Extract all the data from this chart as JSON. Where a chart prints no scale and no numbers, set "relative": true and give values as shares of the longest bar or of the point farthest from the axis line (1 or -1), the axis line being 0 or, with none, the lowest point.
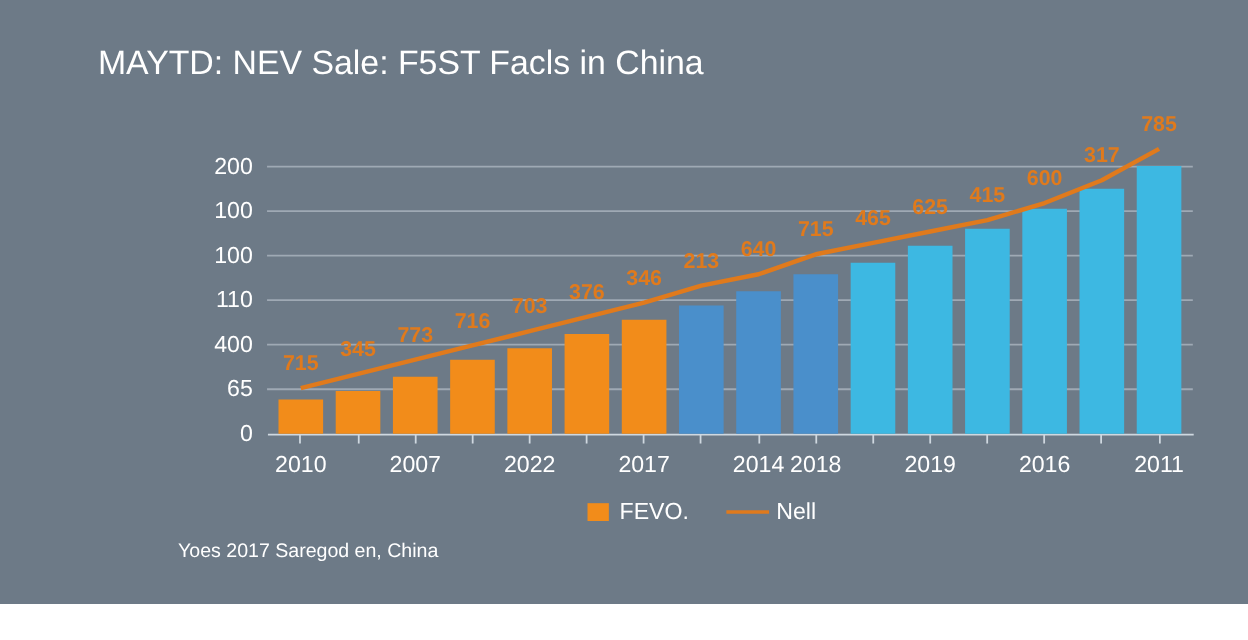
{
  "chart_data": {
    "type": "bar",
    "title": "MAYTD: NEV Sale: F5ST Facls in China",
    "relative": true,
    "categories": [
      "2010",
      null,
      "2007",
      null,
      "2022",
      null,
      "2017",
      null,
      "2014",
      "2018",
      null,
      "2019",
      null,
      "2016",
      null,
      "2011"
    ],
    "series": [
      {
        "name": "FEVO.",
        "color": "#f28c1a",
        "values": [
          0.12,
          0.15,
          0.2,
          0.26,
          0.3,
          0.35,
          0.4,
          null,
          null,
          null,
          null,
          null,
          null,
          null,
          null,
          null
        ]
      },
      {
        "colors": [
          "#3db8e2",
          "#3db8e2",
          "#3db8e2",
          "#3db8e2",
          "#3db8e2",
          "#3db8e2",
          "#3db8e2",
          "#4a8fcb",
          "#4a8fcb",
          "#4a8fcb",
          "#3db8e2",
          "#3db8e2",
          "#3db8e2",
          "#3db8e2",
          "#3db8e2",
          "#3db8e2"
        ],
        "values": [
          null,
          null,
          null,
          null,
          null,
          null,
          null,
          0.45,
          0.5,
          0.56,
          0.6,
          0.66,
          0.72,
          0.79,
          0.86,
          0.94
        ]
      },
      {
        "name": "Nell",
        "type": "line",
        "color": "#e07a1c",
        "values": [
          0.16,
          0.21,
          0.26,
          0.31,
          0.36,
          0.41,
          0.46,
          0.52,
          0.56,
          0.63,
          0.67,
          0.71,
          0.75,
          0.81,
          0.89,
          1
        ]
      }
    ],
    "grid": "y",
    "legend": "bottom",
    "annotations": [
      "0",
      "65",
      "400",
      "110",
      "100",
      "100",
      "200",
      {
        "text": "715",
        "y": 0.16
      },
      {
        "text": "345",
        "y": 0.21
      },
      {
        "text": "773",
        "y": 0.26
      },
      {
        "text": "716",
        "y": 0.31
      },
      {
        "text": "703",
        "y": 0.36
      },
      {
        "text": "376",
        "y": 0.41
      },
      {
        "text": "346",
        "y": 0.46
      },
      {
        "text": "213",
        "y": 0.52
      },
      {
        "text": "640",
        "y": 0.56
      },
      {
        "text": "715",
        "y": 0.63
      },
      {
        "text": "465",
        "y": 0.67
      },
      {
        "text": "625",
        "y": 0.71
      },
      {
        "text": "415",
        "y": 0.75
      },
      {
        "text": "600",
        "y": 0.81
      },
      {
        "text": "317",
        "y": 0.89
      },
      {
        "text": "785",
        "y": 1
      },
      "Yoes 2017 Saregod en, China"
    ]
  }
}
